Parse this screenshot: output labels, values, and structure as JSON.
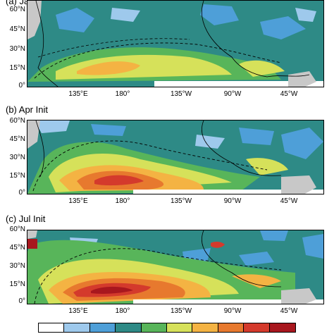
{
  "panels": [
    {
      "title": "(a) Jan Init"
    },
    {
      "title": "(b) Apr Init"
    },
    {
      "title": "(c) Jul Init"
    }
  ],
  "y_labels": [
    "60°N",
    "45°N",
    "30°N",
    "15°N",
    "0°"
  ],
  "x_labels": [
    "135°E",
    "180°",
    "135°W",
    "90°W",
    "45°W"
  ],
  "colorbar": {
    "colors": [
      "#ffffff",
      "#9ec9ec",
      "#4e9fd8",
      "#2e8a86",
      "#58b55a",
      "#d6e15a",
      "#f4b343",
      "#e7792e",
      "#d43a2c",
      "#a8171e"
    ]
  },
  "palette": {
    "ocean_base": "#2e8a86",
    "land": "#c8c8c8"
  }
}
